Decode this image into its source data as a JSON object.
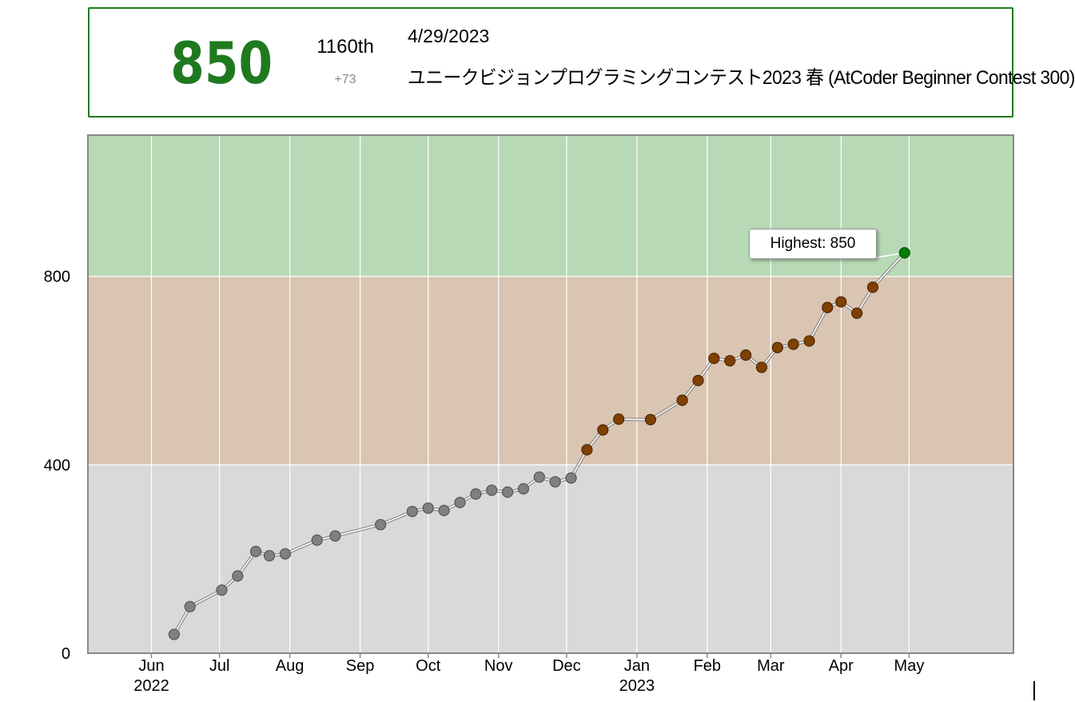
{
  "summary": {
    "rating": "850",
    "rank": "1160th",
    "delta": "+73",
    "date": "4/29/2023",
    "contest_name": "ユニークビジョンプログラミングコンテスト2023 春 (AtCoder Beginner Contest 300)",
    "rating_color": "#1f7a1f"
  },
  "tooltip": {
    "text": "Highest: 850"
  },
  "chart_data": {
    "type": "line",
    "title": "",
    "xlabel": "",
    "ylabel": "",
    "ylim": [
      0,
      1100
    ],
    "xlim": [
      "2022-05-04",
      "2023-06-16"
    ],
    "yticks": [
      0,
      400,
      800
    ],
    "xticks": [
      {
        "date": "2022-06-01",
        "label": "Jun",
        "year": "2022"
      },
      {
        "date": "2022-07-01",
        "label": "Jul",
        "year": ""
      },
      {
        "date": "2022-08-01",
        "label": "Aug",
        "year": ""
      },
      {
        "date": "2022-09-01",
        "label": "Sep",
        "year": ""
      },
      {
        "date": "2022-10-01",
        "label": "Oct",
        "year": ""
      },
      {
        "date": "2022-11-01",
        "label": "Nov",
        "year": ""
      },
      {
        "date": "2022-12-01",
        "label": "Dec",
        "year": ""
      },
      {
        "date": "2023-01-01",
        "label": "Jan",
        "year": "2023"
      },
      {
        "date": "2023-02-01",
        "label": "Feb",
        "year": ""
      },
      {
        "date": "2023-03-01",
        "label": "Mar",
        "year": ""
      },
      {
        "date": "2023-04-01",
        "label": "Apr",
        "year": ""
      },
      {
        "date": "2023-05-01",
        "label": "May",
        "year": ""
      }
    ],
    "bands": [
      {
        "from": 0,
        "to": 400,
        "color": "#d9d9d9"
      },
      {
        "from": 400,
        "to": 800,
        "color": "#d9c5b2"
      },
      {
        "from": 800,
        "to": 1100,
        "color": "#b8d9b6"
      }
    ],
    "grid": true,
    "series": [
      {
        "points": [
          {
            "x": "2022-06-11",
            "y": 40
          },
          {
            "x": "2022-06-18",
            "y": 99
          },
          {
            "x": "2022-07-02",
            "y": 134
          },
          {
            "x": "2022-07-09",
            "y": 164
          },
          {
            "x": "2022-07-17",
            "y": 216
          },
          {
            "x": "2022-07-23",
            "y": 207
          },
          {
            "x": "2022-07-30",
            "y": 211
          },
          {
            "x": "2022-08-13",
            "y": 240
          },
          {
            "x": "2022-08-21",
            "y": 249
          },
          {
            "x": "2022-09-10",
            "y": 273
          },
          {
            "x": "2022-09-24",
            "y": 301
          },
          {
            "x": "2022-10-01",
            "y": 308
          },
          {
            "x": "2022-10-08",
            "y": 303
          },
          {
            "x": "2022-10-15",
            "y": 320
          },
          {
            "x": "2022-10-22",
            "y": 338
          },
          {
            "x": "2022-10-29",
            "y": 346
          },
          {
            "x": "2022-11-05",
            "y": 342
          },
          {
            "x": "2022-11-12",
            "y": 349
          },
          {
            "x": "2022-11-19",
            "y": 374
          },
          {
            "x": "2022-11-26",
            "y": 364
          },
          {
            "x": "2022-12-03",
            "y": 372
          },
          {
            "x": "2022-12-10",
            "y": 432
          },
          {
            "x": "2022-12-17",
            "y": 474
          },
          {
            "x": "2022-12-24",
            "y": 497
          },
          {
            "x": "2023-01-07",
            "y": 496
          },
          {
            "x": "2023-01-21",
            "y": 537
          },
          {
            "x": "2023-01-28",
            "y": 579
          },
          {
            "x": "2023-02-04",
            "y": 626
          },
          {
            "x": "2023-02-11",
            "y": 621
          },
          {
            "x": "2023-02-18",
            "y": 633
          },
          {
            "x": "2023-02-25",
            "y": 607
          },
          {
            "x": "2023-03-04",
            "y": 649
          },
          {
            "x": "2023-03-11",
            "y": 656
          },
          {
            "x": "2023-03-18",
            "y": 663
          },
          {
            "x": "2023-03-26",
            "y": 734
          },
          {
            "x": "2023-04-01",
            "y": 746
          },
          {
            "x": "2023-04-08",
            "y": 722
          },
          {
            "x": "2023-04-15",
            "y": 777
          },
          {
            "x": "2023-04-29",
            "y": 850
          }
        ]
      }
    ],
    "marker_colors": {
      "gray": "#808080",
      "brown": "#804000",
      "green": "#008000"
    },
    "highlight": {
      "x": "2023-04-29",
      "y": 850
    }
  }
}
